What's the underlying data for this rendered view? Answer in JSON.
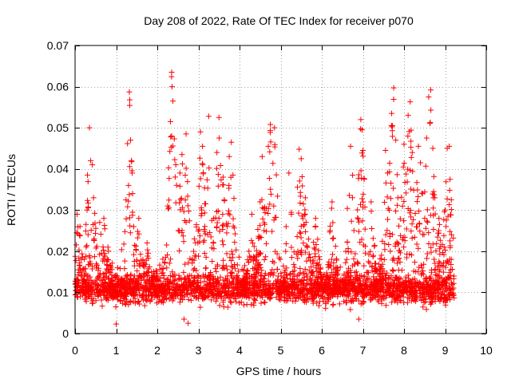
{
  "colors": {
    "series": "#ff0000",
    "grid": "#a0a0a0",
    "axis": "#000000",
    "background": "#ffffff"
  },
  "chart_data": {
    "type": "scatter",
    "title": "Day 208 of 2022, Rate Of TEC Index for receiver p070",
    "xlabel": "GPS time / hours",
    "ylabel": "ROTI / TECUs",
    "xlim": [
      0,
      10
    ],
    "ylim": [
      0,
      0.07
    ],
    "grid": true,
    "marker": "plus",
    "x_ticks": [
      0,
      1,
      2,
      3,
      4,
      5,
      6,
      7,
      8,
      9,
      10
    ],
    "x_tick_labels": [
      "0",
      "1",
      "2",
      "3",
      "4",
      "5",
      "6",
      "7",
      "8",
      "9",
      "10"
    ],
    "y_ticks": [
      0,
      0.01,
      0.02,
      0.03,
      0.04,
      0.05,
      0.06,
      0.07
    ],
    "y_tick_labels": [
      "0",
      "0.01",
      "0.02",
      "0.03",
      "0.04",
      "0.05",
      "0.06",
      "0.07"
    ],
    "series": [
      {
        "name": "ROTI",
        "x_range": [
          0,
          9.22
        ],
        "baseline": 0.0105,
        "peak_points": [
          {
            "x": 0.05,
            "y": 0.029
          },
          {
            "x": 0.12,
            "y": 0.026
          },
          {
            "x": 0.35,
            "y": 0.05
          },
          {
            "x": 0.38,
            "y": 0.042
          },
          {
            "x": 0.42,
            "y": 0.041
          },
          {
            "x": 0.45,
            "y": 0.033
          },
          {
            "x": 0.6,
            "y": 0.027
          },
          {
            "x": 0.7,
            "y": 0.028
          },
          {
            "x": 0.8,
            "y": 0.021
          },
          {
            "x": 1.0,
            "y": 0.0023
          },
          {
            "x": 1.32,
            "y": 0.0587
          },
          {
            "x": 1.33,
            "y": 0.0568
          },
          {
            "x": 1.35,
            "y": 0.047
          },
          {
            "x": 1.37,
            "y": 0.042
          },
          {
            "x": 1.3,
            "y": 0.036
          },
          {
            "x": 1.4,
            "y": 0.034
          },
          {
            "x": 1.55,
            "y": 0.028
          },
          {
            "x": 1.75,
            "y": 0.022
          },
          {
            "x": 2.35,
            "y": 0.0635
          },
          {
            "x": 2.36,
            "y": 0.06
          },
          {
            "x": 2.38,
            "y": 0.0565
          },
          {
            "x": 2.32,
            "y": 0.0515
          },
          {
            "x": 2.35,
            "y": 0.048
          },
          {
            "x": 2.45,
            "y": 0.041
          },
          {
            "x": 2.55,
            "y": 0.039
          },
          {
            "x": 2.6,
            "y": 0.0435
          },
          {
            "x": 2.7,
            "y": 0.0485
          },
          {
            "x": 2.65,
            "y": 0.0035
          },
          {
            "x": 2.75,
            "y": 0.0025
          },
          {
            "x": 2.9,
            "y": 0.023
          },
          {
            "x": 3.05,
            "y": 0.049
          },
          {
            "x": 3.1,
            "y": 0.0455
          },
          {
            "x": 3.25,
            "y": 0.0528
          },
          {
            "x": 3.5,
            "y": 0.0525
          },
          {
            "x": 3.45,
            "y": 0.044
          },
          {
            "x": 3.6,
            "y": 0.038
          },
          {
            "x": 3.75,
            "y": 0.043
          },
          {
            "x": 3.8,
            "y": 0.0465
          },
          {
            "x": 3.5,
            "y": 0.028
          },
          {
            "x": 4.3,
            "y": 0.029
          },
          {
            "x": 4.5,
            "y": 0.032
          },
          {
            "x": 4.55,
            "y": 0.043
          },
          {
            "x": 4.7,
            "y": 0.0455
          },
          {
            "x": 4.75,
            "y": 0.0508
          },
          {
            "x": 4.85,
            "y": 0.05
          },
          {
            "x": 5.2,
            "y": 0.039
          },
          {
            "x": 5.45,
            "y": 0.0448
          },
          {
            "x": 5.5,
            "y": 0.0425
          },
          {
            "x": 5.6,
            "y": 0.033
          },
          {
            "x": 5.85,
            "y": 0.028
          },
          {
            "x": 6.25,
            "y": 0.032
          },
          {
            "x": 6.7,
            "y": 0.0455
          },
          {
            "x": 6.75,
            "y": 0.0385
          },
          {
            "x": 6.95,
            "y": 0.052
          },
          {
            "x": 6.98,
            "y": 0.0495
          },
          {
            "x": 7.0,
            "y": 0.0445
          },
          {
            "x": 6.9,
            "y": 0.0035
          },
          {
            "x": 7.2,
            "y": 0.032
          },
          {
            "x": 7.55,
            "y": 0.0445
          },
          {
            "x": 7.6,
            "y": 0.039
          },
          {
            "x": 7.7,
            "y": 0.0535
          },
          {
            "x": 7.72,
            "y": 0.0505
          },
          {
            "x": 7.75,
            "y": 0.0597
          },
          {
            "x": 7.8,
            "y": 0.047
          },
          {
            "x": 7.85,
            "y": 0.033
          },
          {
            "x": 8.0,
            "y": 0.046
          },
          {
            "x": 8.1,
            "y": 0.053
          },
          {
            "x": 8.15,
            "y": 0.0563
          },
          {
            "x": 8.2,
            "y": 0.044
          },
          {
            "x": 8.35,
            "y": 0.0455
          },
          {
            "x": 8.4,
            "y": 0.0415
          },
          {
            "x": 8.45,
            "y": 0.034
          },
          {
            "x": 8.55,
            "y": 0.0475
          },
          {
            "x": 8.6,
            "y": 0.0575
          },
          {
            "x": 8.65,
            "y": 0.0592
          },
          {
            "x": 8.7,
            "y": 0.045
          },
          {
            "x": 8.75,
            "y": 0.033
          },
          {
            "x": 8.85,
            "y": 0.028
          },
          {
            "x": 9.05,
            "y": 0.045
          },
          {
            "x": 9.1,
            "y": 0.0455
          },
          {
            "x": 9.0,
            "y": 0.03
          },
          {
            "x": 9.2,
            "y": 0.0232
          },
          {
            "x": 9.15,
            "y": 0.018
          }
        ]
      }
    ]
  }
}
